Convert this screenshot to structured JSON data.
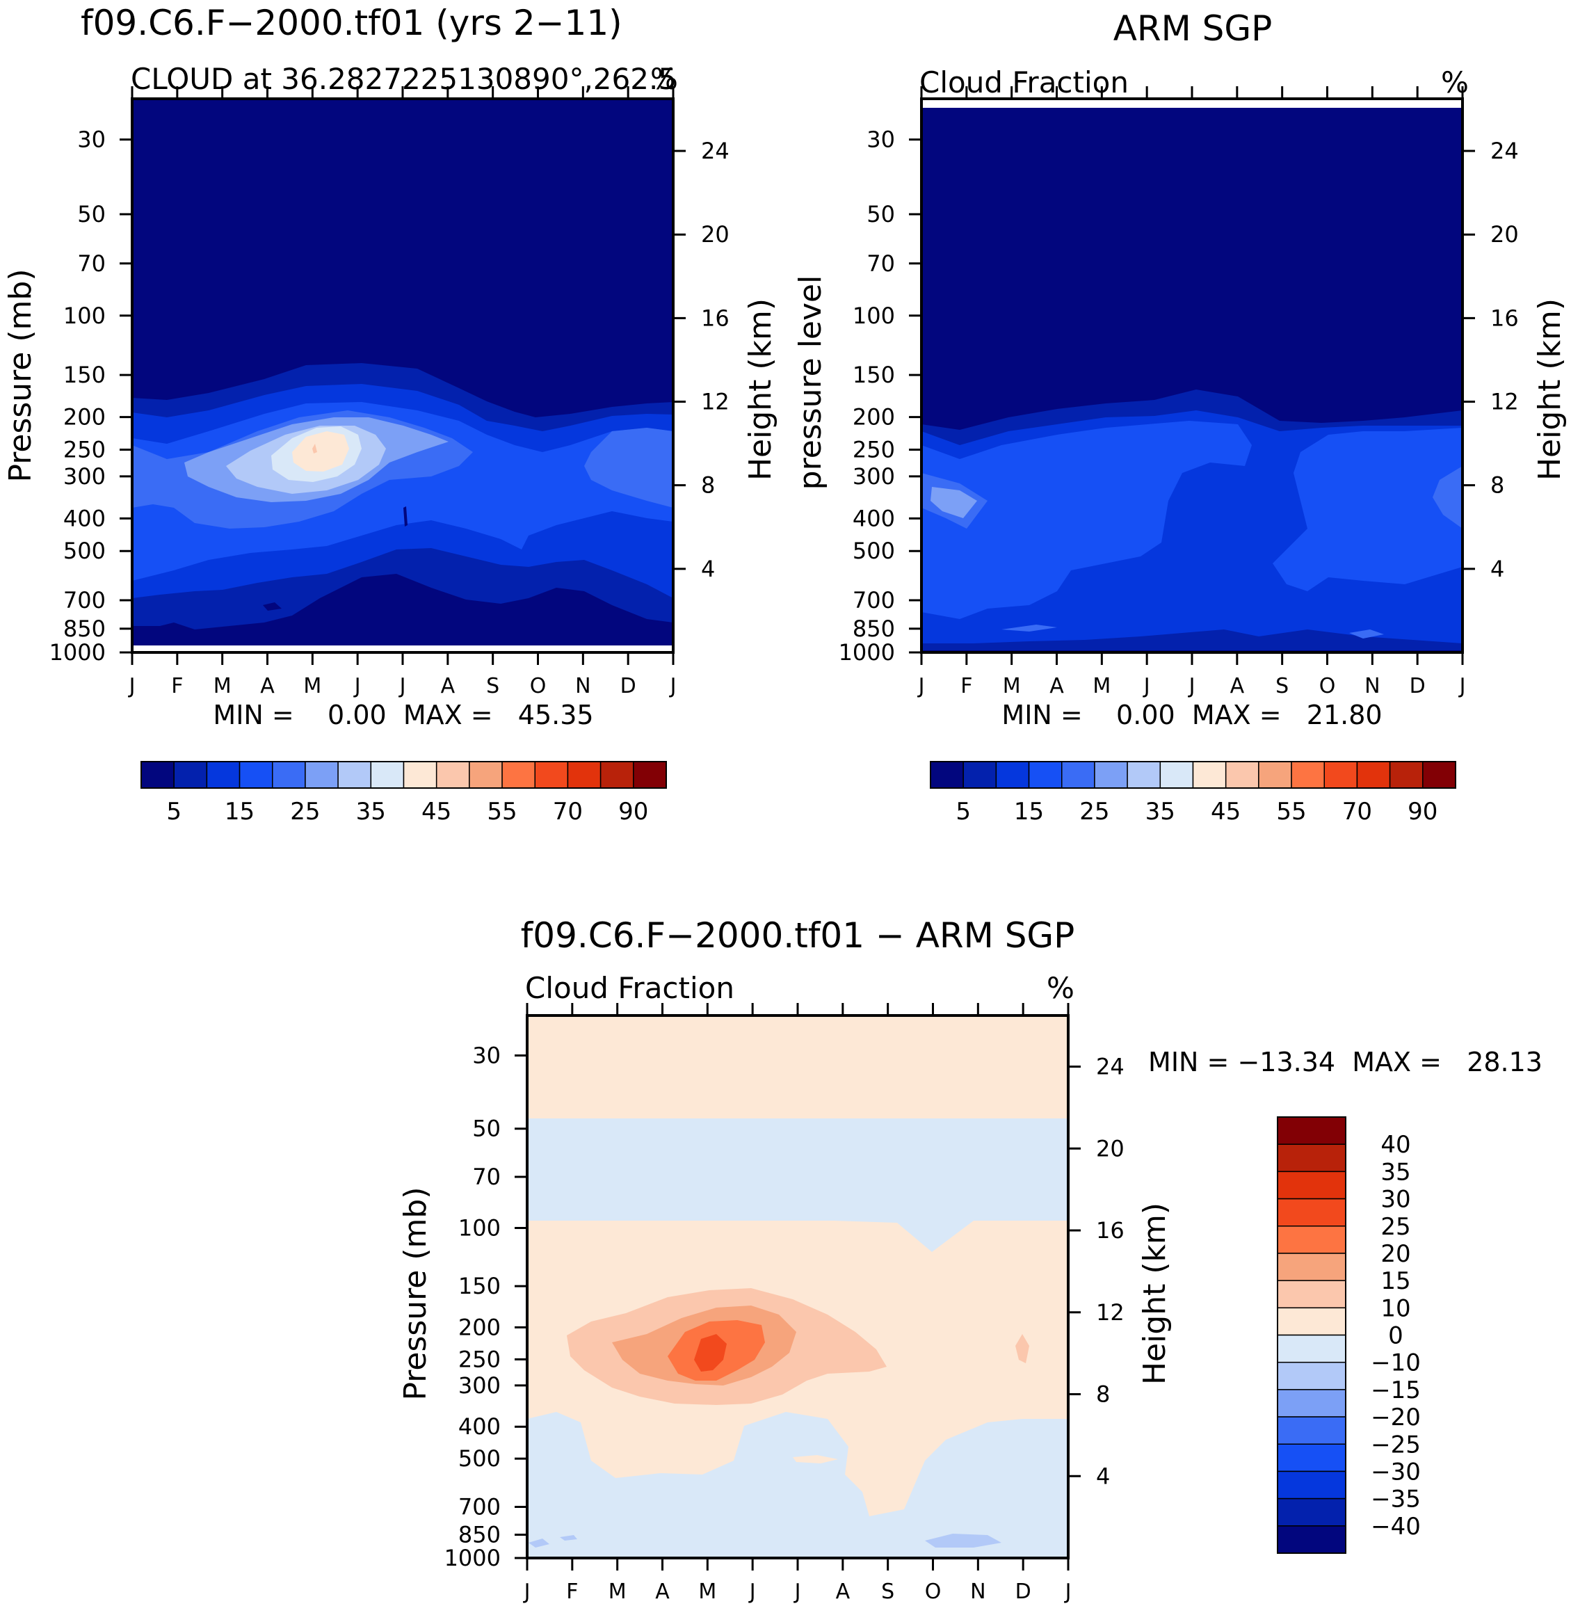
{
  "chart_data": [
    {
      "type": "contour",
      "title": "f09.C6.F−2000.tf01 (yrs 2−11)",
      "subtitle_left": "CLOUD at 36.2827225130890°,262.5",
      "subtitle_right": "%",
      "xlabel": "",
      "ylabel_left": "Pressure (mb)",
      "ylabel_right": "Height (km)",
      "x_ticks": [
        "J",
        "F",
        "M",
        "A",
        "M",
        "J",
        "J",
        "A",
        "S",
        "O",
        "N",
        "D",
        "J"
      ],
      "y_ticks_pressure": [
        30,
        50,
        70,
        100,
        150,
        200,
        250,
        300,
        400,
        500,
        700,
        850,
        1000
      ],
      "y_ticks_height": [
        24,
        20,
        16,
        12,
        8,
        4
      ],
      "min_max_text": "MIN =    0.00  MAX =   45.35",
      "min": 0.0,
      "max": 45.35,
      "colorbar_labels": [
        "5",
        "15",
        "25",
        "35",
        "45",
        "55",
        "70",
        "90"
      ]
    },
    {
      "type": "contour",
      "title": "ARM SGP",
      "subtitle_left": "Cloud Fraction",
      "subtitle_right": "%",
      "xlabel": "",
      "ylabel_left": "pressure level",
      "ylabel_right": "Height (km)",
      "x_ticks": [
        "J",
        "F",
        "M",
        "A",
        "M",
        "J",
        "J",
        "A",
        "S",
        "O",
        "N",
        "D",
        "J"
      ],
      "y_ticks_pressure": [
        30,
        50,
        70,
        100,
        150,
        200,
        250,
        300,
        400,
        500,
        700,
        850,
        1000
      ],
      "y_ticks_height": [
        24,
        20,
        16,
        12,
        8,
        4
      ],
      "min_max_text": "MIN =    0.00  MAX =   21.80",
      "min": 0.0,
      "max": 21.8,
      "colorbar_labels": [
        "5",
        "15",
        "25",
        "35",
        "45",
        "55",
        "70",
        "90"
      ]
    },
    {
      "type": "contour",
      "title": "f09.C6.F−2000.tf01 − ARM SGP",
      "subtitle_left": "Cloud Fraction",
      "subtitle_right": "%",
      "xlabel": "",
      "ylabel_left": "Pressure (mb)",
      "ylabel_right": "Height (km)",
      "x_ticks": [
        "J",
        "F",
        "M",
        "A",
        "M",
        "J",
        "J",
        "A",
        "S",
        "O",
        "N",
        "D",
        "J"
      ],
      "y_ticks_pressure": [
        30,
        50,
        70,
        100,
        150,
        200,
        250,
        300,
        400,
        500,
        700,
        850,
        1000
      ],
      "y_ticks_height": [
        24,
        20,
        16,
        12,
        8,
        4
      ],
      "min_max_text": "MIN = −13.34  MAX =   28.13",
      "min": -13.34,
      "max": 28.13,
      "colorbar_labels": [
        "40",
        "35",
        "30",
        "25",
        "20",
        "15",
        "10",
        "0",
        "−10",
        "−15",
        "−20",
        "−25",
        "−30",
        "−35",
        "−40"
      ]
    }
  ],
  "colors": {
    "seq": [
      "#02067e",
      "#0321ad",
      "#0537dd",
      "#1650f5",
      "#3a6cf5",
      "#7ca0f6",
      "#b2c9f8",
      "#d9e8f8",
      "#fde8d6",
      "#fbc7ad",
      "#f6a47c",
      "#fd7442",
      "#f2491d",
      "#e2330c",
      "#b8220a",
      "#820005"
    ],
    "div": [
      "#820005",
      "#b8220a",
      "#e2330c",
      "#f2491d",
      "#fd7442",
      "#f6a47c",
      "#fbc7ad",
      "#fde8d6",
      "#d9e8f8",
      "#b2c9f8",
      "#7ca0f6",
      "#3a6cf5",
      "#1650f5",
      "#0537dd",
      "#0321ad",
      "#02067e"
    ]
  }
}
